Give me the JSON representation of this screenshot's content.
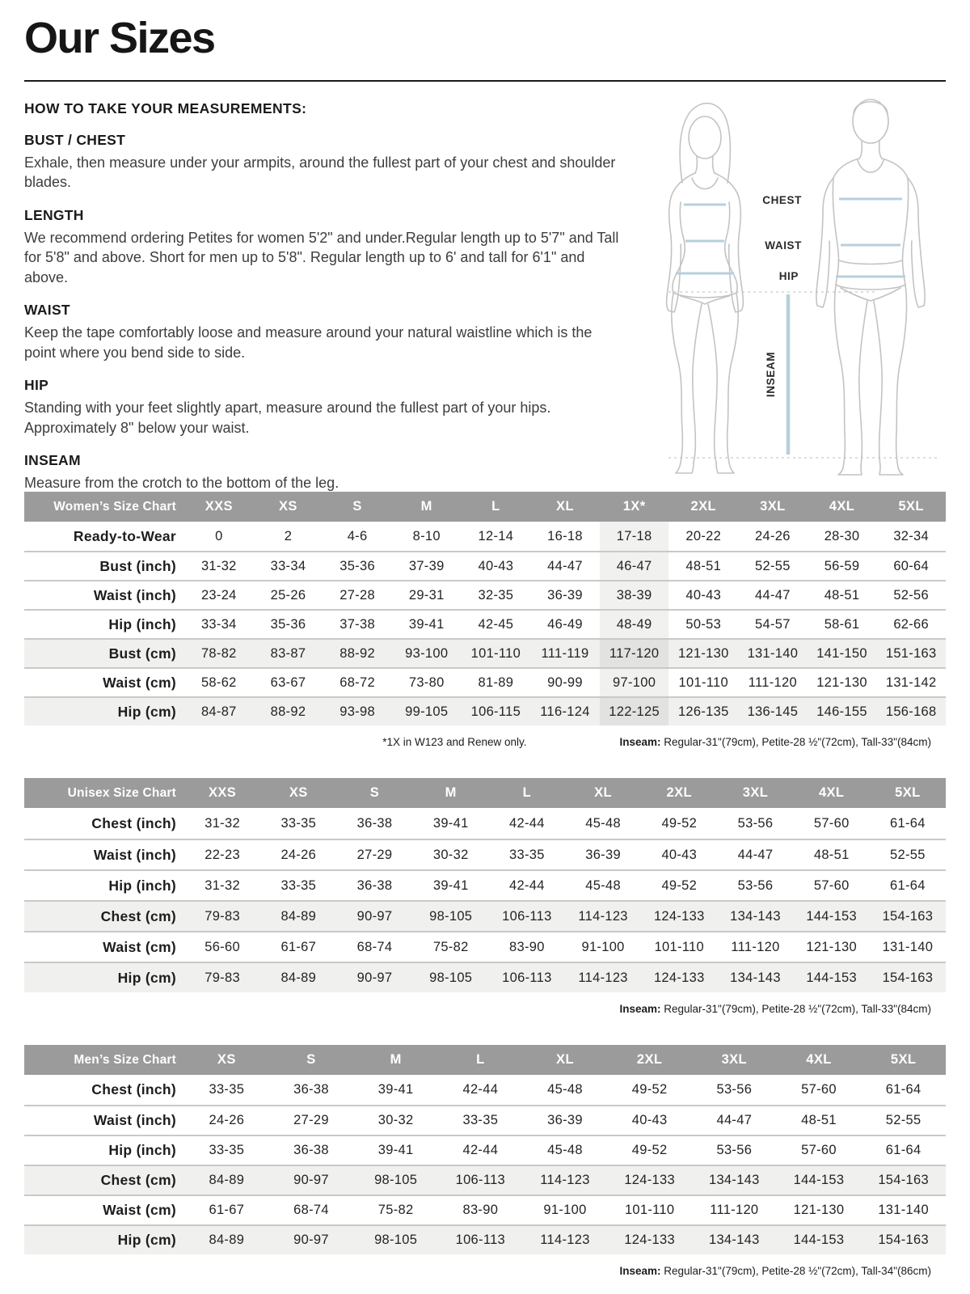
{
  "page": {
    "title": "Our Sizes"
  },
  "instructions": {
    "heading": "HOW TO TAKE YOUR MEASUREMENTS:",
    "sections": [
      {
        "title": "BUST / CHEST",
        "body": "Exhale, then measure under your armpits, around the fullest part of your chest and shoulder blades."
      },
      {
        "title": "LENGTH",
        "body": "We recommend ordering Petites for women 5'2\" and under.Regular length up to 5'7\" and Tall for 5'8\" and above. Short for men up to 5'8\". Regular length up to 6' and tall for 6'1\" and above."
      },
      {
        "title": "WAIST",
        "body": "Keep the tape comfortably loose and measure around your natural waistline which is the point where you bend side to side."
      },
      {
        "title": "HIP",
        "body": "Standing with your feet slightly apart, measure around the fullest part of your hips. Approximately 8\" below your waist."
      },
      {
        "title": "INSEAM",
        "body": "Measure from the crotch to the bottom of the leg."
      }
    ]
  },
  "diagram": {
    "labels": {
      "chest": "CHEST",
      "waist": "WAIST",
      "hip": "HIP",
      "inseam": "INSEAM"
    }
  },
  "colors": {
    "header_gray": "#9b9b9b",
    "shaded_row": "#f0f0ee",
    "highlight_column": "#e2e2e0",
    "measure_blue": "#b7cfdd"
  },
  "tables": [
    {
      "id": "women",
      "title": "Women’s Size Chart",
      "columns": [
        "XXS",
        "XS",
        "S",
        "M",
        "L",
        "XL",
        "1X*",
        "2XL",
        "3XL",
        "4XL",
        "5XL"
      ],
      "highlight_column": 6,
      "rows": [
        {
          "label": "Ready-to-Wear",
          "shaded": false,
          "values": [
            "0",
            "2",
            "4-6",
            "8-10",
            "12-14",
            "16-18",
            "17-18",
            "20-22",
            "24-26",
            "28-30",
            "32-34"
          ]
        },
        {
          "label": "Bust (inch)",
          "shaded": false,
          "values": [
            "31-32",
            "33-34",
            "35-36",
            "37-39",
            "40-43",
            "44-47",
            "46-47",
            "48-51",
            "52-55",
            "56-59",
            "60-64"
          ]
        },
        {
          "label": "Waist (inch)",
          "shaded": false,
          "values": [
            "23-24",
            "25-26",
            "27-28",
            "29-31",
            "32-35",
            "36-39",
            "38-39",
            "40-43",
            "44-47",
            "48-51",
            "52-56"
          ]
        },
        {
          "label": "Hip (inch)",
          "shaded": false,
          "values": [
            "33-34",
            "35-36",
            "37-38",
            "39-41",
            "42-45",
            "46-49",
            "48-49",
            "50-53",
            "54-57",
            "58-61",
            "62-66"
          ]
        },
        {
          "label": "Bust (cm)",
          "shaded": true,
          "values": [
            "78-82",
            "83-87",
            "88-92",
            "93-100",
            "101-110",
            "111-119",
            "117-120",
            "121-130",
            "131-140",
            "141-150",
            "151-163"
          ]
        },
        {
          "label": "Waist (cm)",
          "shaded": false,
          "values": [
            "58-62",
            "63-67",
            "68-72",
            "73-80",
            "81-89",
            "90-99",
            "97-100",
            "101-110",
            "111-120",
            "121-130",
            "131-142"
          ]
        },
        {
          "label": "Hip (cm)",
          "shaded": true,
          "values": [
            "84-87",
            "88-92",
            "93-98",
            "99-105",
            "106-115",
            "116-124",
            "122-125",
            "126-135",
            "136-145",
            "146-155",
            "156-168"
          ]
        }
      ],
      "footnote_left": "*1X in W123 and Renew only.",
      "footnote_label": "Inseam:",
      "footnote_text": " Regular-31\"(79cm), Petite-28 ½\"(72cm), Tall-33\"(84cm)"
    },
    {
      "id": "unisex",
      "title": "Unisex Size Chart",
      "columns": [
        "XXS",
        "XS",
        "S",
        "M",
        "L",
        "XL",
        "2XL",
        "3XL",
        "4XL",
        "5XL"
      ],
      "highlight_column": -1,
      "rows": [
        {
          "label": "Chest (inch)",
          "shaded": false,
          "values": [
            "31-32",
            "33-35",
            "36-38",
            "39-41",
            "42-44",
            "45-48",
            "49-52",
            "53-56",
            "57-60",
            "61-64"
          ]
        },
        {
          "label": "Waist (inch)",
          "shaded": false,
          "values": [
            "22-23",
            "24-26",
            "27-29",
            "30-32",
            "33-35",
            "36-39",
            "40-43",
            "44-47",
            "48-51",
            "52-55"
          ]
        },
        {
          "label": "Hip (inch)",
          "shaded": false,
          "values": [
            "31-32",
            "33-35",
            "36-38",
            "39-41",
            "42-44",
            "45-48",
            "49-52",
            "53-56",
            "57-60",
            "61-64"
          ]
        },
        {
          "label": "Chest (cm)",
          "shaded": true,
          "values": [
            "79-83",
            "84-89",
            "90-97",
            "98-105",
            "106-113",
            "114-123",
            "124-133",
            "134-143",
            "144-153",
            "154-163"
          ]
        },
        {
          "label": "Waist (cm)",
          "shaded": false,
          "values": [
            "56-60",
            "61-67",
            "68-74",
            "75-82",
            "83-90",
            "91-100",
            "101-110",
            "111-120",
            "121-130",
            "131-140"
          ]
        },
        {
          "label": "Hip (cm)",
          "shaded": true,
          "values": [
            "79-83",
            "84-89",
            "90-97",
            "98-105",
            "106-113",
            "114-123",
            "124-133",
            "134-143",
            "144-153",
            "154-163"
          ]
        }
      ],
      "footnote_left": "",
      "footnote_label": "Inseam:",
      "footnote_text": " Regular-31\"(79cm), Petite-28 ½\"(72cm), Tall-33\"(84cm)"
    },
    {
      "id": "men",
      "title": "Men’s Size Chart",
      "columns": [
        "XS",
        "S",
        "M",
        "L",
        "XL",
        "2XL",
        "3XL",
        "4XL",
        "5XL"
      ],
      "highlight_column": -1,
      "rows": [
        {
          "label": "Chest (inch)",
          "shaded": false,
          "values": [
            "33-35",
            "36-38",
            "39-41",
            "42-44",
            "45-48",
            "49-52",
            "53-56",
            "57-60",
            "61-64"
          ]
        },
        {
          "label": "Waist (inch)",
          "shaded": false,
          "values": [
            "24-26",
            "27-29",
            "30-32",
            "33-35",
            "36-39",
            "40-43",
            "44-47",
            "48-51",
            "52-55"
          ]
        },
        {
          "label": "Hip (inch)",
          "shaded": false,
          "values": [
            "33-35",
            "36-38",
            "39-41",
            "42-44",
            "45-48",
            "49-52",
            "53-56",
            "57-60",
            "61-64"
          ]
        },
        {
          "label": "Chest (cm)",
          "shaded": true,
          "values": [
            "84-89",
            "90-97",
            "98-105",
            "106-113",
            "114-123",
            "124-133",
            "134-143",
            "144-153",
            "154-163"
          ]
        },
        {
          "label": "Waist (cm)",
          "shaded": false,
          "values": [
            "61-67",
            "68-74",
            "75-82",
            "83-90",
            "91-100",
            "101-110",
            "111-120",
            "121-130",
            "131-140"
          ]
        },
        {
          "label": "Hip (cm)",
          "shaded": true,
          "values": [
            "84-89",
            "90-97",
            "98-105",
            "106-113",
            "114-123",
            "124-133",
            "134-143",
            "144-153",
            "154-163"
          ]
        }
      ],
      "footnote_left": "",
      "footnote_label": "Inseam:",
      "footnote_text": " Regular-31\"(79cm), Petite-28 ½\"(72cm), Tall-34\"(86cm)"
    }
  ]
}
